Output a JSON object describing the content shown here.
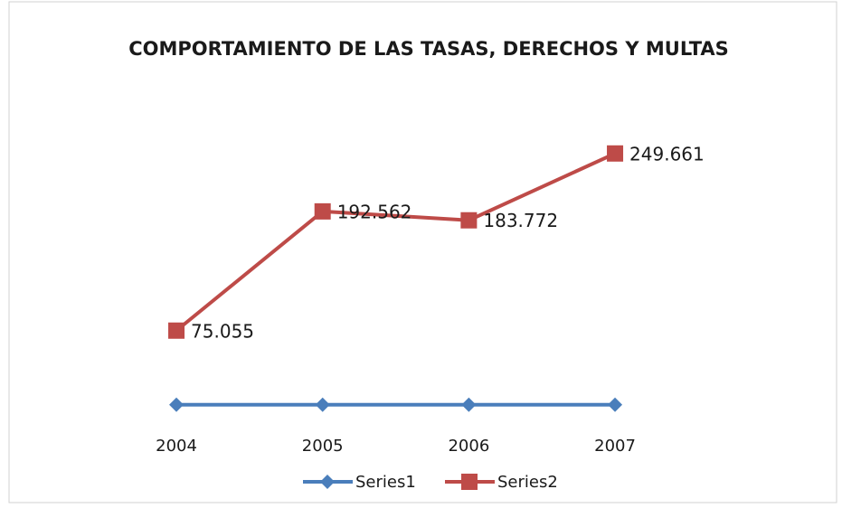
{
  "chart_data": {
    "type": "line",
    "title": "COMPORTAMIENTO DE LAS TASAS, DERECHOS Y MULTAS",
    "categories": [
      "2004",
      "2005",
      "2006",
      "2007"
    ],
    "series": [
      {
        "name": "Series1",
        "color": "#4a7ebb",
        "values": [
          2004,
          2005,
          2006,
          2007
        ]
      },
      {
        "name": "Series2",
        "color": "#be4b48",
        "values": [
          75055,
          192562,
          183772,
          249661
        ],
        "value_labels": [
          "75.055",
          "192.562",
          "183.772",
          "249.661"
        ]
      }
    ],
    "ylim": [
      0,
      250000
    ]
  }
}
